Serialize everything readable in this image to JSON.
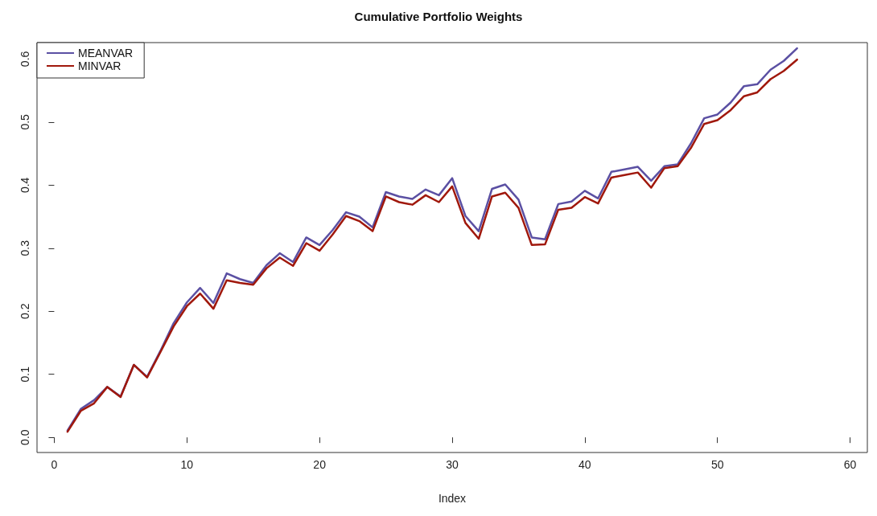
{
  "chart_data": {
    "type": "line",
    "title": "Cumulative Portfolio Weights",
    "xlabel": "Index",
    "x": [
      1,
      2,
      3,
      4,
      5,
      6,
      7,
      8,
      9,
      10,
      11,
      12,
      13,
      14,
      15,
      16,
      17,
      18,
      19,
      20,
      21,
      22,
      23,
      24,
      25,
      26,
      27,
      28,
      29,
      30,
      31,
      32,
      33,
      34,
      35,
      36,
      37,
      38,
      39,
      40,
      41,
      42,
      43,
      44,
      45,
      46,
      47,
      48,
      49,
      50,
      51,
      52,
      53,
      54,
      55,
      56
    ],
    "series": [
      {
        "name": "MEANVAR",
        "color": "#5b50a3",
        "values": [
          0.011,
          0.045,
          0.059,
          0.08,
          0.065,
          0.115,
          0.096,
          0.137,
          0.181,
          0.214,
          0.237,
          0.213,
          0.26,
          0.251,
          0.245,
          0.273,
          0.292,
          0.278,
          0.317,
          0.305,
          0.329,
          0.357,
          0.35,
          0.333,
          0.389,
          0.382,
          0.378,
          0.393,
          0.384,
          0.411,
          0.351,
          0.327,
          0.394,
          0.401,
          0.377,
          0.317,
          0.314,
          0.37,
          0.374,
          0.391,
          0.379,
          0.421,
          0.425,
          0.429,
          0.407,
          0.43,
          0.433,
          0.466,
          0.506,
          0.512,
          0.531,
          0.557,
          0.56,
          0.583,
          0.597,
          0.617
        ]
      },
      {
        "name": "MINVAR",
        "color": "#a0180c",
        "values": [
          0.009,
          0.042,
          0.054,
          0.08,
          0.064,
          0.115,
          0.095,
          0.135,
          0.176,
          0.208,
          0.228,
          0.204,
          0.249,
          0.245,
          0.242,
          0.268,
          0.285,
          0.272,
          0.308,
          0.296,
          0.322,
          0.351,
          0.343,
          0.327,
          0.382,
          0.373,
          0.369,
          0.384,
          0.373,
          0.398,
          0.34,
          0.315,
          0.382,
          0.388,
          0.364,
          0.305,
          0.306,
          0.361,
          0.364,
          0.381,
          0.371,
          0.412,
          0.416,
          0.42,
          0.396,
          0.427,
          0.43,
          0.459,
          0.497,
          0.503,
          0.519,
          0.541,
          0.547,
          0.568,
          0.581,
          0.599
        ]
      }
    ],
    "xlim": [
      -1.3,
      61.3
    ],
    "xticks": [
      0,
      10,
      20,
      30,
      40,
      50,
      60
    ],
    "ylim": [
      -0.024,
      0.626
    ],
    "yticks": [
      {
        "value": 0,
        "label": "0.0"
      },
      0.1,
      0.2,
      0.3,
      0.4,
      0.5,
      0.6
    ],
    "grid": false,
    "legend": "top left",
    "marker": "none",
    "line_style": "solid"
  }
}
